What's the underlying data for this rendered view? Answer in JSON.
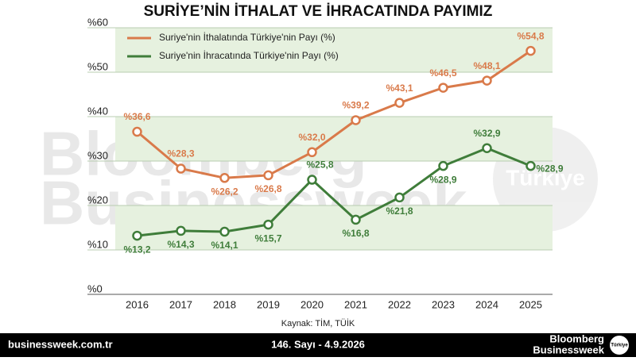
{
  "chart_data": {
    "type": "line",
    "title": "SURİYE’NİN İTHALAT VE İHRACATINDA PAYIMIZ",
    "categories": [
      "2016",
      "2017",
      "2018",
      "2019",
      "2020",
      "2021",
      "2022",
      "2023",
      "2024",
      "2025"
    ],
    "series": [
      {
        "name": "Suriye'nin İthalatında Türkiye'nin Payı (%)",
        "color": "#d97a4a",
        "values": [
          36.6,
          28.3,
          26.2,
          26.8,
          32.0,
          39.2,
          43.1,
          46.5,
          48.1,
          54.8
        ],
        "value_labels": [
          "%36,6",
          "%28,3",
          "%26,2",
          "%26,8",
          "%32,0",
          "%39,2",
          "%43,1",
          "%46,5",
          "%48,1",
          "%54,8"
        ]
      },
      {
        "name": "Suriye'nin İhracatında Türkiye'nin Payı (%)",
        "color": "#3f7d3a",
        "values": [
          13.2,
          14.3,
          14.1,
          15.7,
          25.8,
          16.8,
          21.8,
          28.9,
          32.9,
          28.9
        ],
        "value_labels": [
          "%13,2",
          "%14,3",
          "%14,1",
          "%15,7",
          "%25,8",
          "%16,8",
          "%21,8",
          "%28,9",
          "%32,9",
          "%28,9"
        ]
      }
    ],
    "ylim": [
      0,
      60
    ],
    "yticks": [
      {
        "value": 0,
        "label": "%0"
      },
      {
        "value": 10,
        "label": "%10"
      },
      {
        "value": 20,
        "label": "%20"
      },
      {
        "value": 30,
        "label": "%30"
      },
      {
        "value": 40,
        "label": "%40"
      },
      {
        "value": 50,
        "label": "%50"
      },
      {
        "value": 60,
        "label": "%60"
      }
    ],
    "grid": true,
    "legend": "top-left",
    "source": "Kaynak: TİM, TÜİK",
    "watermark": [
      "Bloomberg",
      "Businessweek",
      "Türkiye"
    ]
  },
  "footer": {
    "site": "businessweek.com.tr",
    "issue": "146. Sayı - 4.9.2026",
    "brand": [
      "Bloomberg",
      "Businessweek"
    ],
    "badge": "Türkiye"
  }
}
